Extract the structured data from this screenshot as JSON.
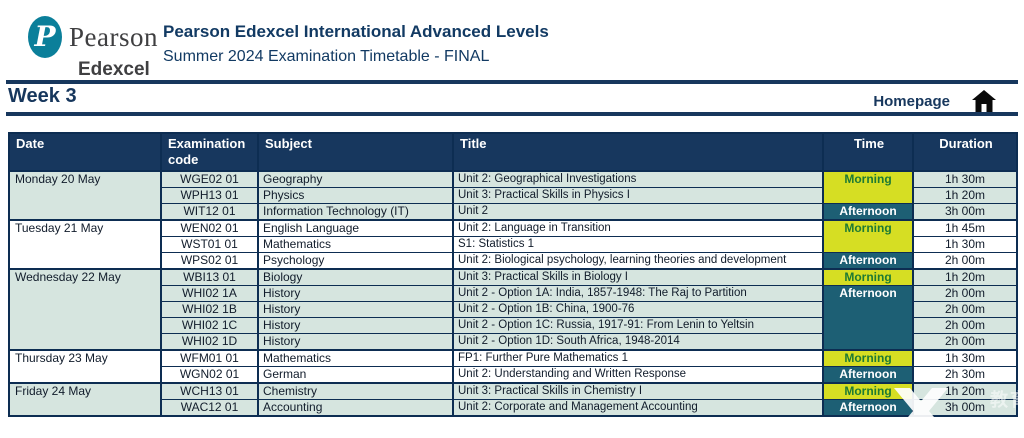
{
  "header": {
    "logo": {
      "brand": "Pearson",
      "sub": "Edexcel"
    },
    "title": "Pearson Edexcel International Advanced Levels",
    "subtitle": "Summer 2024 Examination Timetable - FINAL"
  },
  "week_bar": {
    "week": "Week 3",
    "homepage": "Homepage"
  },
  "colors": {
    "navy_header": "#17375e",
    "navy_text": "#123a63",
    "morning_bg": "#d6de23",
    "morning_text": "#1e7a33",
    "afternoon_bg": "#1d5f74",
    "mint_row": "#d6e5df",
    "pearson_teal": "#0b7f9a"
  },
  "table": {
    "columns": [
      "Date",
      "Examination code",
      "Subject",
      "Title",
      "Time",
      "Duration"
    ],
    "days": [
      {
        "date": "Monday 20 May",
        "rows": [
          {
            "code": "WGE02 01",
            "subject": "Geography",
            "title": "Unit 2: Geographical Investigations",
            "time": "Morning",
            "time_span": 2,
            "duration": "1h 30m"
          },
          {
            "code": "WPH13 01",
            "subject": "Physics",
            "title": "Unit 3: Practical Skills in Physics I",
            "duration": "1h 20m"
          },
          {
            "code": "WIT12 01",
            "subject": "Information Technology (IT)",
            "title": "Unit 2",
            "time": "Afternoon",
            "time_span": 1,
            "duration": "3h 00m"
          }
        ]
      },
      {
        "date": "Tuesday 21 May",
        "rows": [
          {
            "code": "WEN02 01",
            "subject": "English Language",
            "title": "Unit 2: Language in Transition",
            "time": "Morning",
            "time_span": 2,
            "duration": "1h 45m"
          },
          {
            "code": "WST01 01",
            "subject": "Mathematics",
            "title": "S1: Statistics 1",
            "duration": "1h 30m"
          },
          {
            "code": "WPS02 01",
            "subject": "Psychology",
            "title": "Unit 2: Biological psychology, learning theories and development",
            "time": "Afternoon",
            "time_span": 1,
            "duration": "2h 00m"
          }
        ]
      },
      {
        "date": "Wednesday 22 May",
        "rows": [
          {
            "code": "WBI13 01",
            "subject": "Biology",
            "title": "Unit 3: Practical Skills in Biology I",
            "time": "Morning",
            "time_span": 1,
            "duration": "1h 20m"
          },
          {
            "code": "WHI02 1A",
            "subject": "History",
            "title": "Unit 2 - Option 1A: India, 1857-1948: The Raj to Partition",
            "time": "Afternoon",
            "time_span": 4,
            "duration": "2h 00m"
          },
          {
            "code": "WHI02 1B",
            "subject": "History",
            "title": "Unit 2 - Option 1B: China, 1900-76",
            "duration": "2h 00m"
          },
          {
            "code": "WHI02 1C",
            "subject": "History",
            "title": "Unit 2 - Option 1C: Russia, 1917-91: From Lenin to Yeltsin",
            "duration": "2h 00m"
          },
          {
            "code": "WHI02 1D",
            "subject": "History",
            "title": "Unit 2 - Option 1D: South Africa, 1948-2014",
            "duration": "2h 00m"
          }
        ]
      },
      {
        "date": "Thursday 23 May",
        "rows": [
          {
            "code": "WFM01 01",
            "subject": "Mathematics",
            "title": "FP1: Further Pure Mathematics 1",
            "time": "Morning",
            "time_span": 1,
            "duration": "1h 30m"
          },
          {
            "code": "WGN02 01",
            "subject": "German",
            "title": "Unit 2: Understanding and Written Response",
            "time": "Afternoon",
            "time_span": 1,
            "duration": "2h 30m"
          }
        ]
      },
      {
        "date": "Friday 24 May",
        "rows": [
          {
            "code": "WCH13 01",
            "subject": "Chemistry",
            "title": "Unit 3: Practical Skills in Chemistry I",
            "time": "Morning",
            "time_span": 1,
            "duration": "1h 20m"
          },
          {
            "code": "WAC12 01",
            "subject": "Accounting",
            "title": "Unit 2: Corporate and Management Accounting",
            "time": "Afternoon",
            "time_span": 1,
            "duration": "3h 00m"
          }
        ]
      }
    ]
  },
  "watermark": {
    "cjk": "教育",
    "letters": "R E W"
  }
}
